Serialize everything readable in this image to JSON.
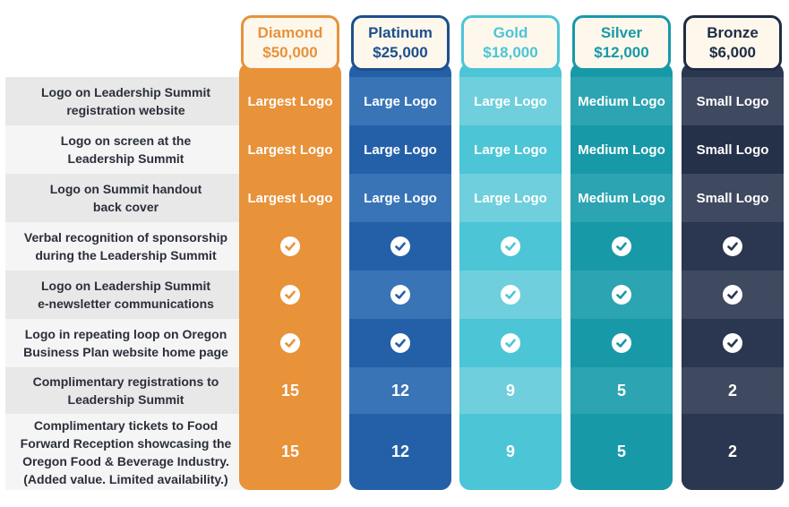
{
  "benefits": [
    "Logo on Leadership Summit\nregistration website",
    "Logo on screen at the\nLeadership Summit",
    "Logo on Summit handout\nback cover",
    "Verbal recognition of sponsorship\nduring the Leadership Summit",
    "Logo on Leadership Summit\ne-newsletter communications",
    "Logo in repeating loop on Oregon\nBusiness Plan website home page",
    "Complimentary registrations to\nLeadership Summit",
    "Complimentary tickets to Food\nForward Reception showcasing the\nOregon Food & Beverage Industry.\n(Added value. Limited availability.)"
  ],
  "tiers": [
    {
      "name": "Diamond",
      "price": "$50,000",
      "header_text_color": "#e8923a",
      "header_border_color": "#e8923a",
      "column_color": "#e8923a",
      "row_colors": [
        "#e8923a",
        "#e8923a",
        "#e8923a",
        "#e8923a",
        "#e8923a",
        "#e8923a",
        "#e8923a",
        "#e8923a"
      ],
      "check_color": "#e8923a",
      "logo_size": "Largest Logo",
      "registrations": "15",
      "tickets": "15"
    },
    {
      "name": "Platinum",
      "price": "$25,000",
      "header_text_color": "#1e4f8c",
      "header_border_color": "#1e4f8c",
      "column_color": "#2460a8",
      "row_colors": [
        "#3874b6",
        "#2460a8",
        "#3874b6",
        "#2460a8",
        "#3874b6",
        "#2460a8",
        "#3874b6",
        "#2460a8"
      ],
      "check_color": "#2460a8",
      "logo_size": "Large Logo",
      "registrations": "12",
      "tickets": "12"
    },
    {
      "name": "Gold",
      "price": "$18,000",
      "header_text_color": "#4cc5d6",
      "header_border_color": "#4cc5d6",
      "column_color": "#4cc5d6",
      "row_colors": [
        "#6fcfdc",
        "#4cc5d6",
        "#6fcfdc",
        "#4cc5d6",
        "#6fcfdc",
        "#4cc5d6",
        "#6fcfdc",
        "#4cc5d6"
      ],
      "check_color": "#4cc5d6",
      "logo_size": "Large Logo",
      "registrations": "9",
      "tickets": "9"
    },
    {
      "name": "Silver",
      "price": "$12,000",
      "header_text_color": "#1899a8",
      "header_border_color": "#1899a8",
      "column_color": "#1899a8",
      "row_colors": [
        "#2ca4b2",
        "#1899a8",
        "#2ca4b2",
        "#1899a8",
        "#2ca4b2",
        "#1899a8",
        "#2ca4b2",
        "#1899a8"
      ],
      "check_color": "#1899a8",
      "logo_size": "Medium Logo",
      "registrations": "5",
      "tickets": "5"
    },
    {
      "name": "Bronze",
      "price": "$6,000",
      "header_text_color": "#1f2c44",
      "header_border_color": "#1f2c44",
      "column_color": "#2b3650",
      "row_colors": [
        "#3f4960",
        "#253049",
        "#3f4960",
        "#2b3650",
        "#3f4960",
        "#2b3650",
        "#3f4960",
        "#2b3650"
      ],
      "check_color": "#2b3650",
      "logo_size": "Small Logo",
      "registrations": "2",
      "tickets": "2"
    }
  ],
  "label_row_colors": [
    "#e8e8e8",
    "#f5f5f5",
    "#e8e8e8",
    "#f5f5f5",
    "#e8e8e8",
    "#f5f5f5",
    "#e8e8e8",
    "#f5f5f5"
  ]
}
